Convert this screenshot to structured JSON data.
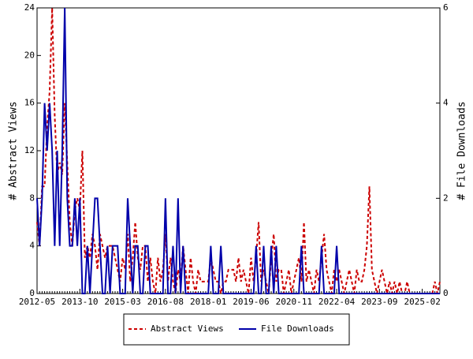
{
  "chart_data": {
    "type": "line",
    "y_label": "# Abstract Views",
    "y2_label": "# File Downloads",
    "categories": [
      "2012-05",
      null,
      null,
      null,
      null,
      null,
      null,
      null,
      null,
      null,
      null,
      null,
      null,
      null,
      null,
      null,
      null,
      "2013-10",
      null,
      null,
      null,
      null,
      null,
      null,
      null,
      null,
      null,
      null,
      null,
      null,
      null,
      null,
      null,
      null,
      "2015-03",
      null,
      null,
      null,
      null,
      null,
      null,
      null,
      null,
      null,
      null,
      null,
      null,
      null,
      null,
      null,
      null,
      "2016-08",
      null,
      null,
      null,
      null,
      null,
      null,
      null,
      null,
      null,
      null,
      null,
      null,
      null,
      null,
      null,
      null,
      "2018-01",
      null,
      null,
      null,
      null,
      null,
      null,
      null,
      null,
      null,
      null,
      null,
      null,
      null,
      null,
      null,
      null,
      "2019-06",
      null,
      null,
      null,
      null,
      null,
      null,
      null,
      null,
      null,
      null,
      null,
      null,
      null,
      null,
      null,
      null,
      "2020-11",
      null,
      null,
      null,
      null,
      null,
      null,
      null,
      null,
      null,
      null,
      null,
      null,
      null,
      null,
      null,
      null,
      "2022-04",
      null,
      null,
      null,
      null,
      null,
      null,
      null,
      null,
      null,
      null,
      null,
      null,
      null,
      null,
      null,
      null,
      "2023-09",
      null,
      null,
      null,
      null,
      null,
      null,
      null,
      null,
      null,
      null,
      null,
      null,
      null,
      null,
      null,
      null,
      "2025-02",
      null,
      null,
      null,
      null,
      null,
      null,
      null
    ],
    "series": [
      {
        "name": "Abstract Views",
        "color": "#cc0000",
        "dash": true,
        "axis": "y",
        "values": [
          6,
          4,
          9,
          9,
          14,
          17,
          24,
          15,
          10,
          11,
          10,
          16,
          11,
          6,
          4,
          7,
          8,
          7,
          12,
          3,
          4,
          3,
          5,
          4,
          2,
          5,
          4,
          3,
          4,
          4,
          4,
          3,
          2,
          1,
          3,
          2,
          5,
          1,
          3,
          6,
          3,
          2,
          4,
          4,
          1,
          3,
          1,
          0,
          3,
          1,
          2,
          5,
          1,
          3,
          1,
          0,
          2,
          1,
          4,
          2,
          0,
          3,
          1,
          0,
          2,
          1,
          1,
          1,
          1,
          3,
          2,
          1,
          1,
          0,
          1,
          1,
          2,
          2,
          2,
          1,
          3,
          1,
          2,
          1,
          0,
          3,
          1,
          3,
          6,
          1,
          2,
          1,
          0,
          3,
          5,
          1,
          2,
          2,
          0,
          1,
          2,
          0,
          1,
          2,
          3,
          1,
          6,
          1,
          2,
          1,
          0,
          2,
          1,
          3,
          5,
          2,
          1,
          0,
          2,
          1,
          2,
          1,
          0,
          1,
          2,
          1,
          0,
          2,
          1,
          1,
          2,
          4,
          9,
          2,
          1,
          0,
          1,
          2,
          1,
          0,
          1,
          0,
          1,
          0,
          1,
          0,
          0,
          1,
          0,
          0,
          0,
          0,
          0,
          0,
          0,
          0,
          0,
          0,
          1,
          0,
          1
        ]
      },
      {
        "name": "File Downloads",
        "color": "#0000aa",
        "dash": false,
        "axis": "y2",
        "values": [
          2,
          1,
          2,
          4,
          3,
          4,
          3,
          1,
          3,
          1,
          3,
          6,
          2,
          1,
          1,
          2,
          1,
          2,
          0,
          0,
          1,
          0,
          1,
          2,
          2,
          1,
          0,
          0,
          1,
          0,
          1,
          1,
          1,
          0,
          0,
          0,
          2,
          1,
          0,
          1,
          1,
          0,
          0,
          1,
          1,
          0,
          0,
          0,
          0,
          0,
          0,
          2,
          0,
          0,
          1,
          0,
          2,
          0,
          1,
          0,
          0,
          0,
          0,
          0,
          0,
          0,
          0,
          0,
          0,
          1,
          0,
          0,
          0,
          1,
          0,
          0,
          0,
          0,
          0,
          0,
          0,
          0,
          0,
          0,
          0,
          0,
          0,
          1,
          0,
          0,
          1,
          0,
          0,
          1,
          0,
          1,
          0,
          0,
          0,
          0,
          0,
          0,
          0,
          0,
          0,
          1,
          0,
          0,
          0,
          0,
          0,
          0,
          0,
          1,
          0,
          0,
          0,
          0,
          0,
          1,
          0,
          0,
          0,
          0,
          0,
          0,
          0,
          0,
          0,
          0,
          0,
          0,
          0,
          0,
          0,
          0,
          0,
          0,
          0,
          0,
          0,
          0,
          0,
          0,
          0,
          0,
          0,
          0,
          0,
          0,
          0,
          0,
          0,
          0,
          0,
          0,
          0,
          0,
          0,
          0,
          0
        ]
      }
    ],
    "ylim": [
      0,
      24
    ],
    "yticks": [
      0,
      4,
      8,
      12,
      16,
      20,
      24
    ],
    "y2lim": [
      0,
      6
    ],
    "y2ticks": [
      0,
      2,
      4,
      6
    ]
  }
}
